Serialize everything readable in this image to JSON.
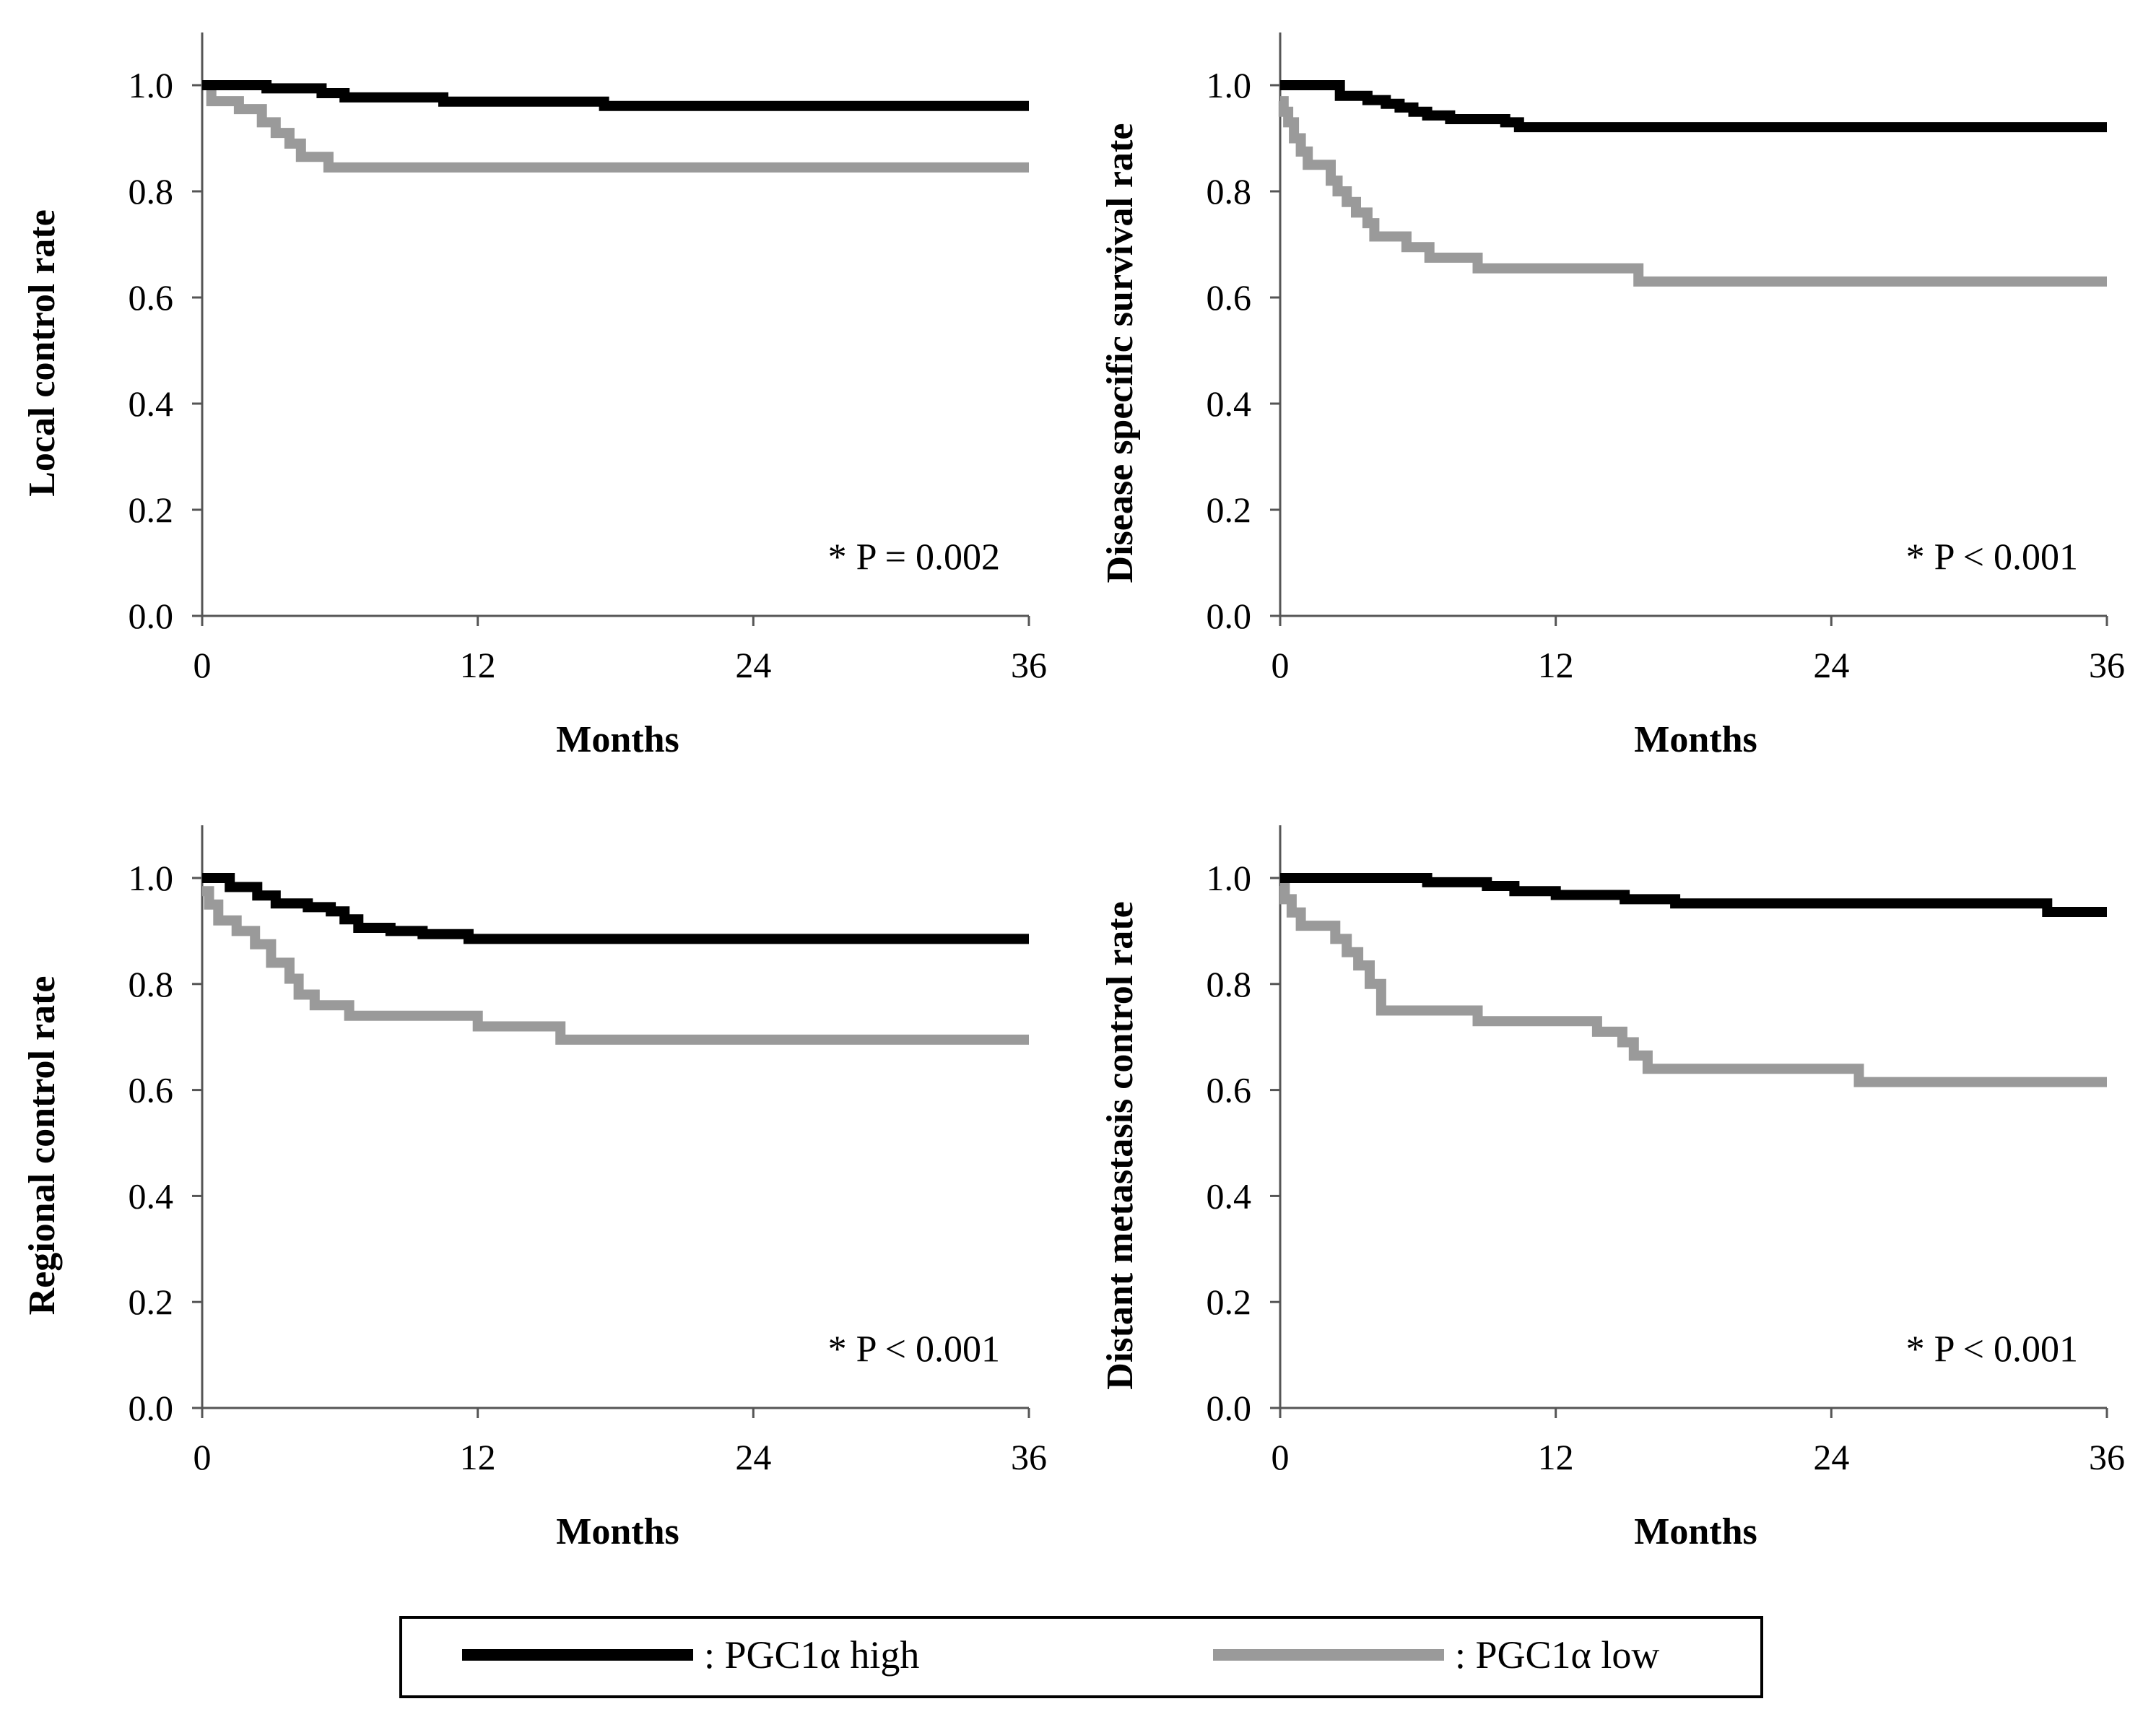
{
  "chart_data": [
    {
      "type": "line",
      "step": true,
      "ylabel": "Local control rate",
      "xlabel": "Months",
      "annotation": "* P = 0.002",
      "xlim": [
        0,
        36
      ],
      "ylim": [
        0,
        1.1
      ],
      "xticks": [
        "0",
        "12",
        "24",
        "36"
      ],
      "yticks": [
        "0.0",
        "0.2",
        "0.4",
        "0.6",
        "0.8",
        "1.0"
      ],
      "series": [
        {
          "name": "PGC1α high",
          "color": "#000000",
          "x": [
            0,
            2.8,
            5.2,
            6.2,
            10.5,
            17.5,
            36
          ],
          "y": [
            1.0,
            0.994,
            0.985,
            0.977,
            0.969,
            0.961,
            0.961
          ]
        },
        {
          "name": "PGC1α low",
          "color": "#9a9a9a",
          "x": [
            0,
            0.4,
            1.6,
            2.6,
            3.2,
            3.8,
            4.3,
            5.5,
            36
          ],
          "y": [
            1.0,
            0.97,
            0.955,
            0.93,
            0.91,
            0.89,
            0.865,
            0.845,
            0.845
          ]
        }
      ]
    },
    {
      "type": "line",
      "step": true,
      "ylabel": "Disease specific survival rate",
      "xlabel": "Months",
      "annotation": "* P < 0.001",
      "xlim": [
        0,
        36
      ],
      "ylim": [
        0,
        1.1
      ],
      "xticks": [
        "0",
        "12",
        "24",
        "36"
      ],
      "yticks": [
        "0.0",
        "0.2",
        "0.4",
        "0.6",
        "0.8",
        "1.0"
      ],
      "series": [
        {
          "name": "PGC1α high",
          "color": "#000000",
          "x": [
            0,
            2.6,
            3.8,
            4.6,
            5.2,
            5.8,
            6.4,
            7.4,
            9.8,
            10.4,
            36
          ],
          "y": [
            1.0,
            0.98,
            0.972,
            0.965,
            0.958,
            0.95,
            0.943,
            0.936,
            0.93,
            0.921,
            0.921
          ]
        },
        {
          "name": "PGC1α low",
          "color": "#9a9a9a",
          "x": [
            0,
            0.15,
            0.35,
            0.6,
            0.9,
            1.2,
            2.2,
            2.5,
            2.9,
            3.3,
            3.8,
            4.1,
            5.5,
            6.5,
            8.6,
            15.6,
            36
          ],
          "y": [
            0.97,
            0.95,
            0.93,
            0.9,
            0.875,
            0.85,
            0.82,
            0.8,
            0.78,
            0.76,
            0.74,
            0.715,
            0.695,
            0.675,
            0.655,
            0.63,
            0.63
          ]
        }
      ]
    },
    {
      "type": "line",
      "step": true,
      "ylabel": "Regional control rate",
      "xlabel": "Months",
      "annotation": "* P < 0.001",
      "xlim": [
        0,
        36
      ],
      "ylim": [
        0,
        1.1
      ],
      "xticks": [
        "0",
        "12",
        "24",
        "36"
      ],
      "yticks": [
        "0.0",
        "0.2",
        "0.4",
        "0.6",
        "0.8",
        "1.0"
      ],
      "series": [
        {
          "name": "PGC1α high",
          "color": "#000000",
          "x": [
            0,
            1.2,
            2.4,
            3.2,
            4.6,
            5.6,
            6.2,
            6.8,
            8.2,
            9.6,
            11.6,
            36
          ],
          "y": [
            1.0,
            0.983,
            0.967,
            0.952,
            0.945,
            0.937,
            0.922,
            0.906,
            0.9,
            0.894,
            0.885,
            0.885
          ]
        },
        {
          "name": "PGC1α low",
          "color": "#9a9a9a",
          "x": [
            0,
            0.3,
            0.7,
            1.5,
            2.3,
            3.0,
            3.8,
            4.2,
            4.9,
            6.4,
            12.0,
            15.6,
            36
          ],
          "y": [
            0.975,
            0.95,
            0.92,
            0.9,
            0.875,
            0.84,
            0.81,
            0.78,
            0.76,
            0.74,
            0.72,
            0.695,
            0.695
          ]
        }
      ]
    },
    {
      "type": "line",
      "step": true,
      "ylabel": "Distant metastasis control rate",
      "xlabel": "Months",
      "annotation": "* P < 0.001",
      "xlim": [
        0,
        36
      ],
      "ylim": [
        0,
        1.1
      ],
      "xticks": [
        "0",
        "12",
        "24",
        "36"
      ],
      "yticks": [
        "0.0",
        "0.2",
        "0.4",
        "0.6",
        "0.8",
        "1.0"
      ],
      "series": [
        {
          "name": "PGC1α high",
          "color": "#000000",
          "x": [
            0,
            6.4,
            9.0,
            10.2,
            12.0,
            15.0,
            17.2,
            33.4,
            36
          ],
          "y": [
            1.0,
            0.992,
            0.985,
            0.975,
            0.968,
            0.96,
            0.952,
            0.936,
            0.936
          ]
        },
        {
          "name": "PGC1α low",
          "color": "#9a9a9a",
          "x": [
            0,
            0.2,
            0.5,
            0.9,
            2.4,
            2.9,
            3.4,
            3.9,
            4.4,
            8.6,
            13.8,
            14.9,
            15.4,
            16.0,
            25.2,
            36
          ],
          "y": [
            0.985,
            0.96,
            0.935,
            0.91,
            0.885,
            0.86,
            0.835,
            0.8,
            0.75,
            0.73,
            0.71,
            0.69,
            0.665,
            0.64,
            0.615,
            0.615
          ]
        }
      ]
    }
  ],
  "legend": {
    "items": [
      {
        "label": ": PGC1α high",
        "color": "#000000"
      },
      {
        "label": ": PGC1α low",
        "color": "#9a9a9a"
      }
    ]
  }
}
